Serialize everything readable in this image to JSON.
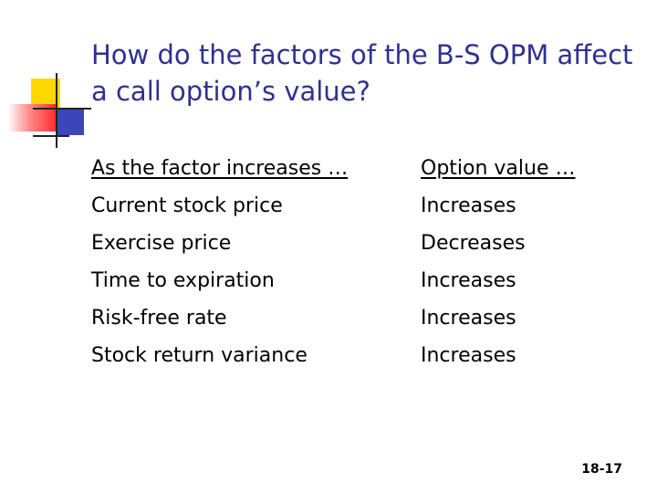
{
  "slide": {
    "title": "How do the factors of the B-S OPM affect a call option’s value?",
    "slide_number": "18-17"
  },
  "table": {
    "headers": [
      "As the factor increases …",
      "Option value …"
    ],
    "rows": [
      [
        "Current stock price",
        "Increases"
      ],
      [
        "Exercise price",
        "Decreases"
      ],
      [
        "Time to expiration",
        "Increases"
      ],
      [
        "Risk-free rate",
        "Increases"
      ],
      [
        "Stock return variance",
        "Increases"
      ]
    ]
  },
  "colors": {
    "title": "#2e3192",
    "logo_yellow": "#ffd800",
    "logo_blue": "#3b46b8",
    "logo_red": "#ff2a2a"
  }
}
